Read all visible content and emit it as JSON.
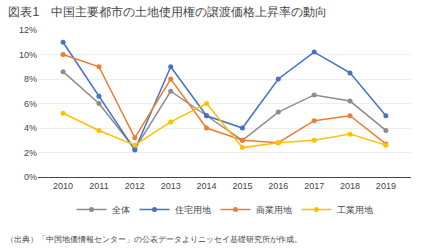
{
  "chart_data": {
    "type": "line",
    "title": "図表1　中国主要都市の土地使用権の譲渡価格上昇率の動向",
    "annotations": [
      "（出典）「中国地価情報センター」の公表データよりニッセイ基礎研究所が作成。"
    ],
    "x": [
      2010,
      2011,
      2012,
      2013,
      2014,
      2015,
      2016,
      2017,
      2018,
      2019
    ],
    "series": [
      {
        "name": "全体",
        "color": "#8C8C8C",
        "values": [
          8.6,
          6.0,
          2.3,
          7.0,
          5.0,
          3.0,
          5.3,
          6.7,
          6.2,
          3.8
        ]
      },
      {
        "name": "住宅用地",
        "color": "#4472C4",
        "values": [
          11.0,
          6.6,
          2.2,
          9.0,
          5.0,
          4.0,
          8.0,
          10.2,
          8.5,
          5.0
        ]
      },
      {
        "name": "商業用地",
        "color": "#ED7D31",
        "values": [
          10.0,
          9.0,
          3.2,
          8.0,
          4.0,
          3.0,
          2.8,
          4.6,
          5.0,
          2.7
        ]
      },
      {
        "name": "工業用地",
        "color": "#FFC000",
        "values": [
          5.2,
          3.8,
          2.6,
          4.5,
          6.0,
          2.4,
          2.8,
          3.0,
          3.5,
          2.6
        ]
      }
    ],
    "xlim": [
      2009.3,
      2019.7
    ],
    "xticks": [
      2010,
      2011,
      2012,
      2013,
      2014,
      2015,
      2016,
      2017,
      2018,
      2019
    ],
    "ylim": [
      0,
      12
    ],
    "yticks": [
      {
        "value": 0,
        "label": "0%"
      },
      {
        "value": 2,
        "label": "2%"
      },
      {
        "value": 4,
        "label": "4%"
      },
      {
        "value": 6,
        "label": "6%"
      },
      {
        "value": 8,
        "label": "8%"
      },
      {
        "value": 10,
        "label": "10%"
      },
      {
        "value": 12,
        "label": "12%"
      }
    ],
    "grid": true,
    "legend": "bottom",
    "marker": "circle",
    "line_style": "solid"
  }
}
